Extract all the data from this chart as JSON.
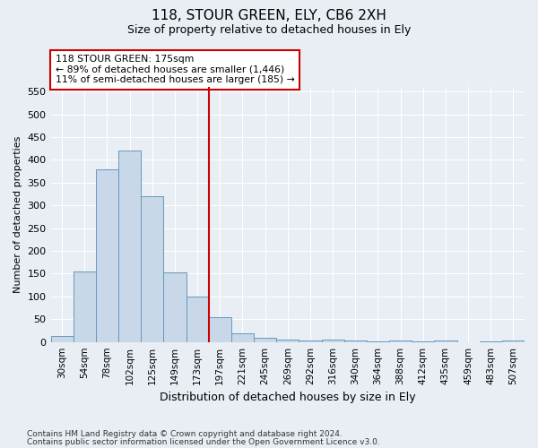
{
  "title1": "118, STOUR GREEN, ELY, CB6 2XH",
  "title2": "Size of property relative to detached houses in Ely",
  "xlabel": "Distribution of detached houses by size in Ely",
  "ylabel": "Number of detached properties",
  "footnote1": "Contains HM Land Registry data © Crown copyright and database right 2024.",
  "footnote2": "Contains public sector information licensed under the Open Government Licence v3.0.",
  "bar_labels": [
    "30sqm",
    "54sqm",
    "78sqm",
    "102sqm",
    "125sqm",
    "149sqm",
    "173sqm",
    "197sqm",
    "221sqm",
    "245sqm",
    "269sqm",
    "292sqm",
    "316sqm",
    "340sqm",
    "364sqm",
    "388sqm",
    "412sqm",
    "435sqm",
    "459sqm",
    "483sqm",
    "507sqm"
  ],
  "bar_values": [
    13,
    155,
    380,
    420,
    320,
    153,
    100,
    55,
    20,
    10,
    5,
    3,
    5,
    3,
    2,
    3,
    2,
    3,
    0,
    1,
    3
  ],
  "bar_color": "#c8d8e8",
  "bar_edge_color": "#6699bb",
  "red_line_x": 6.5,
  "annotation_line1": "118 STOUR GREEN: 175sqm",
  "annotation_line2": "← 89% of detached houses are smaller (1,446)",
  "annotation_line3": "11% of semi-detached houses are larger (185) →",
  "annotation_box_color": "#ffffff",
  "annotation_box_edge": "#cc0000",
  "ylim": [
    0,
    560
  ],
  "yticks": [
    0,
    50,
    100,
    150,
    200,
    250,
    300,
    350,
    400,
    450,
    500,
    550
  ],
  "bg_color": "#e8eef4",
  "grid_color": "#ffffff",
  "red_color": "#cc0000"
}
